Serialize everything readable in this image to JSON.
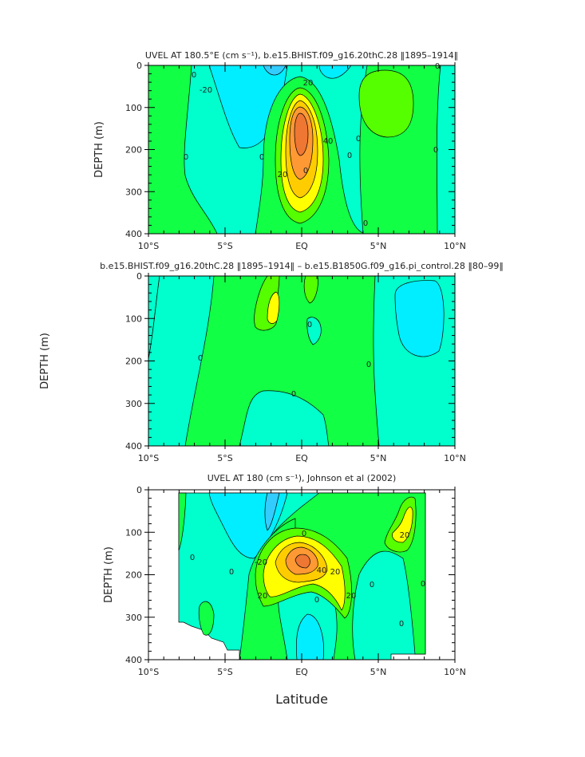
{
  "chart_data": [
    {
      "type": "heatmap",
      "subtype": "filled-contour",
      "title": "UVEL AT 180.5°E (cm s⁻¹), b.e15.BHIST.f09_g16.20thC.28 ‖1895–1914‖",
      "ylabel": "DEPTH (m)",
      "xlabel": "",
      "xlim": [
        -10,
        10
      ],
      "ylim": [
        400,
        0
      ],
      "x_ticks": [
        "10°S",
        "5°S",
        "EQ",
        "5°N",
        "10°N"
      ],
      "y_ticks": [
        "0",
        "100",
        "200",
        "300",
        "400"
      ],
      "contour_interval": 10,
      "contour_labels": [
        "0",
        "-20",
        "0",
        "0",
        "20",
        "40",
        "20",
        "0",
        "0",
        "0",
        "0",
        "0",
        "0"
      ],
      "max_value_approx": 70,
      "max_location": {
        "lat": 0,
        "depth": 170
      }
    },
    {
      "type": "heatmap",
      "subtype": "filled-contour",
      "title": "b.e15.BHIST.f09_g16.20thC.28 ‖1895–1914‖ – b.e15.B1850G.f09_g16.pi_control.28 ‖80–99‖",
      "ylabel": "DEPTH (m)",
      "xlabel": "",
      "xlim": [
        -10,
        10
      ],
      "ylim": [
        400,
        0
      ],
      "x_ticks": [
        "10°S",
        "5°S",
        "EQ",
        "5°N",
        "10°N"
      ],
      "y_ticks": [
        "0",
        "100",
        "200",
        "300",
        "400"
      ],
      "contour_labels": [
        "0",
        "0",
        "0",
        "0"
      ]
    },
    {
      "type": "heatmap",
      "subtype": "filled-contour",
      "title": "UVEL AT 180 (cm s⁻¹), Johnson et al (2002)",
      "ylabel": "DEPTH (m)",
      "xlabel": "Latitude",
      "xlim": [
        -10,
        10
      ],
      "ylim": [
        400,
        0
      ],
      "x_ticks": [
        "10°S",
        "5°S",
        "EQ",
        "5°N",
        "10°N"
      ],
      "y_ticks": [
        "0",
        "100",
        "200",
        "300",
        "400"
      ],
      "contour_labels": [
        "0",
        "-20",
        "0",
        "20",
        "40",
        "20",
        "20",
        "20",
        "0",
        "0",
        "0",
        "0",
        "0"
      ]
    }
  ],
  "colors": {
    "neg30": "#33ccff",
    "neg20": "#00eeff",
    "neg10": "#00ffcc",
    "zero": "#11ff44",
    "pos10": "#55ff00",
    "pos20": "#ffff00",
    "pos30": "#ffcc00",
    "pos40": "#ff9933",
    "pos50": "#ee7733"
  }
}
